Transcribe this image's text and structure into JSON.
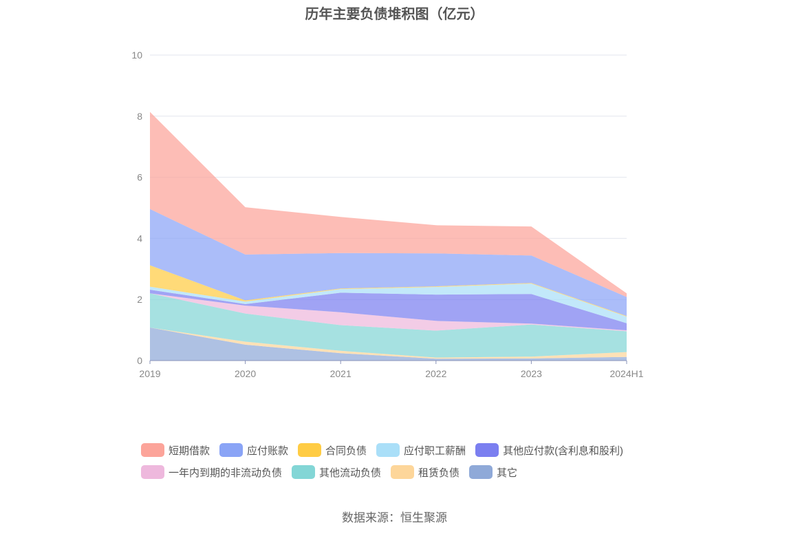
{
  "chart_data": {
    "type": "area",
    "stacked": true,
    "title": "历年主要负债堆积图（亿元）",
    "categories": [
      "2019",
      "2020",
      "2021",
      "2022",
      "2023",
      "2024H1"
    ],
    "ylim": [
      0,
      10
    ],
    "y_ticks": [
      "0",
      "2",
      "4",
      "6",
      "8",
      "10"
    ],
    "grid": true,
    "legend_position": "bottom",
    "series": [
      {
        "name": "其它",
        "color": "#8fa9d8",
        "values": [
          1.08,
          0.52,
          0.24,
          0.06,
          0.07,
          0.12
        ]
      },
      {
        "name": "租赁负债",
        "color": "#fdd69a",
        "values": [
          0.0,
          0.1,
          0.08,
          0.04,
          0.06,
          0.16
        ]
      },
      {
        "name": "其他流动负债",
        "color": "#83d6d6",
        "values": [
          1.12,
          0.92,
          0.84,
          0.88,
          1.05,
          0.68
        ]
      },
      {
        "name": "一年内到期的非流动负债",
        "color": "#eeb8dd",
        "values": [
          0.0,
          0.26,
          0.42,
          0.32,
          0.03,
          0.03
        ]
      },
      {
        "name": "其他应付款(含利息和股利)",
        "color": "#7b7ff0",
        "values": [
          0.12,
          0.05,
          0.64,
          0.86,
          0.97,
          0.23
        ]
      },
      {
        "name": "应付职工薪酬",
        "color": "#aadff8",
        "values": [
          0.1,
          0.08,
          0.12,
          0.25,
          0.34,
          0.22
        ]
      },
      {
        "name": "合同负债",
        "color": "#ffcc44",
        "values": [
          0.7,
          0.04,
          0.02,
          0.02,
          0.02,
          0.02
        ]
      },
      {
        "name": "应付账款",
        "color": "#8aa4f6",
        "values": [
          1.84,
          1.5,
          1.16,
          1.08,
          0.9,
          0.62
        ]
      },
      {
        "name": "短期借款",
        "color": "#fca49a",
        "values": [
          3.18,
          1.55,
          1.18,
          0.92,
          0.95,
          0.12
        ]
      }
    ]
  },
  "legend": {
    "row1": [
      {
        "label": "短期借款",
        "color": "#fca49a"
      },
      {
        "label": "应付账款",
        "color": "#8aa4f6"
      },
      {
        "label": "合同负债",
        "color": "#ffcc44"
      },
      {
        "label": "应付职工薪酬",
        "color": "#aadff8"
      },
      {
        "label": "其他应付款(含利息和股利)",
        "color": "#7b7ff0"
      }
    ],
    "row2": [
      {
        "label": "一年内到期的非流动负债",
        "color": "#eeb8dd"
      },
      {
        "label": "其他流动负债",
        "color": "#83d6d6"
      },
      {
        "label": "租赁负债",
        "color": "#fdd69a"
      },
      {
        "label": "其它",
        "color": "#8fa9d8"
      }
    ]
  },
  "source": "数据来源：恒生聚源"
}
